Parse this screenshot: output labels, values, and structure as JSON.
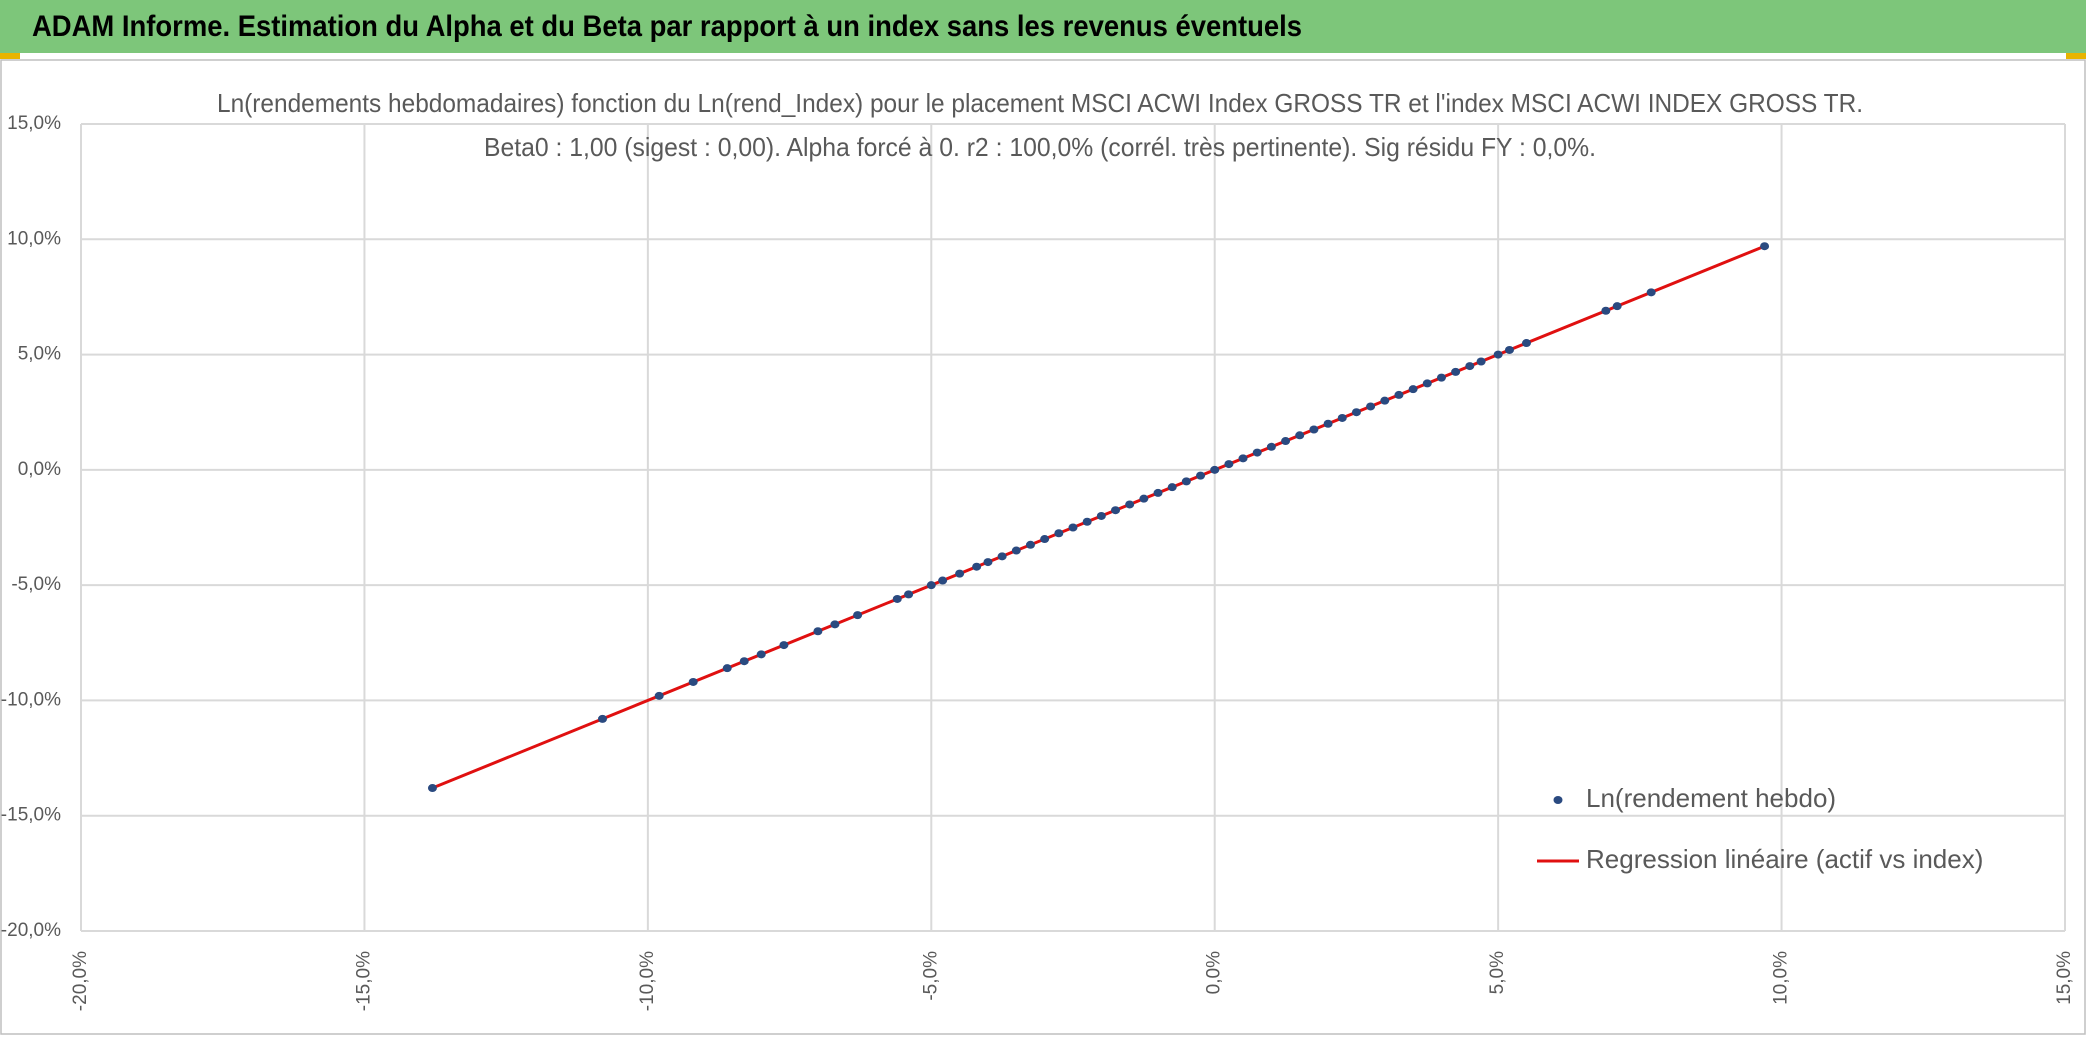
{
  "header": {
    "title": "ADAM Informe. Estimation du Alpha et du Beta par rapport à un index sans les revenus éventuels"
  },
  "chart_data": {
    "type": "scatter",
    "title": "Ln(rendements hebdomadaires) fonction du Ln(rend_Index) pour le placement MSCI ACWI Index GROSS TR et l'index MSCI ACWI INDEX GROSS TR.",
    "subtitle": "Beta0 : 1,00 (sigest : 0,00). Alpha forcé à 0. r2 : 100,0% (corrél. très pertinente). Sig résidu FY : 0,0%.",
    "xlim": [
      -20,
      15
    ],
    "ylim": [
      -20,
      15
    ],
    "xticks": [
      {
        "value": -20,
        "label": "-20,0%"
      },
      {
        "value": -15,
        "label": "-15,0%"
      },
      {
        "value": -10,
        "label": "-10,0%"
      },
      {
        "value": -5,
        "label": "-5,0%"
      },
      {
        "value": 0,
        "label": "0,0%"
      },
      {
        "value": 5,
        "label": "5,0%"
      },
      {
        "value": 10,
        "label": "10,0%"
      },
      {
        "value": 15,
        "label": "15,0%"
      }
    ],
    "yticks": [
      {
        "value": -20,
        "label": "-20,0%"
      },
      {
        "value": -15,
        "label": "-15,0%"
      },
      {
        "value": -10,
        "label": "-10,0%"
      },
      {
        "value": -5,
        "label": "-5,0%"
      },
      {
        "value": 0,
        "label": "0,0%"
      },
      {
        "value": 5,
        "label": "5,0%"
      },
      {
        "value": 10,
        "label": "10,0%"
      },
      {
        "value": 15,
        "label": "15,0%"
      }
    ],
    "grid": true,
    "legend": "bottom-right",
    "series": [
      {
        "name": "Ln(rendement hebdo)",
        "color": "#2a4a80",
        "type": "scatter",
        "x": [
          -13.8,
          -10.8,
          -9.8,
          -9.2,
          -8.6,
          -8.3,
          -8.0,
          -7.6,
          -7.0,
          -6.7,
          -6.3,
          -5.6,
          -5.4,
          -5.0,
          -4.8,
          -4.5,
          -4.2,
          -4.0,
          -3.75,
          -3.5,
          -3.25,
          -3.0,
          -2.75,
          -2.5,
          -2.25,
          -2.0,
          -1.75,
          -1.5,
          -1.25,
          -1.0,
          -0.75,
          -0.5,
          -0.25,
          0.0,
          0.25,
          0.5,
          0.75,
          1.0,
          1.25,
          1.5,
          1.75,
          2.0,
          2.25,
          2.5,
          2.75,
          3.0,
          3.25,
          3.5,
          3.75,
          4.0,
          4.25,
          4.5,
          4.7,
          5.0,
          5.2,
          5.5,
          6.9,
          7.1,
          7.7,
          9.7
        ],
        "values": [
          -13.8,
          -10.8,
          -9.8,
          -9.2,
          -8.6,
          -8.3,
          -8.0,
          -7.6,
          -7.0,
          -6.7,
          -6.3,
          -5.6,
          -5.4,
          -5.0,
          -4.8,
          -4.5,
          -4.2,
          -4.0,
          -3.75,
          -3.5,
          -3.25,
          -3.0,
          -2.75,
          -2.5,
          -2.25,
          -2.0,
          -1.75,
          -1.5,
          -1.25,
          -1.0,
          -0.75,
          -0.5,
          -0.25,
          0.0,
          0.25,
          0.5,
          0.75,
          1.0,
          1.25,
          1.5,
          1.75,
          2.0,
          2.25,
          2.5,
          2.75,
          3.0,
          3.25,
          3.5,
          3.75,
          4.0,
          4.25,
          4.5,
          4.7,
          5.0,
          5.2,
          5.5,
          6.9,
          7.1,
          7.7,
          9.7
        ]
      },
      {
        "name": "Regression linéaire (actif vs index)",
        "color": "#e01010",
        "type": "line",
        "x": [
          -13.8,
          9.7
        ],
        "values": [
          -13.8,
          9.7
        ]
      }
    ]
  }
}
